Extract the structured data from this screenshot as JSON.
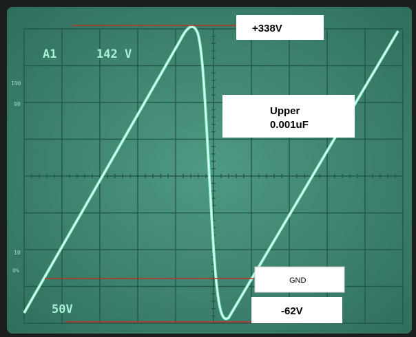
{
  "readouts": {
    "channel": "A1",
    "scale": "142 V",
    "volts_div": "50V"
  },
  "percent_marks": [
    "100",
    "90",
    "10",
    "0%"
  ],
  "annotations": {
    "peak": "+338V",
    "capacitor_line1": "Upper",
    "capacitor_line2": "0.001uF",
    "ground": "GND",
    "minimum": "-62V"
  }
}
